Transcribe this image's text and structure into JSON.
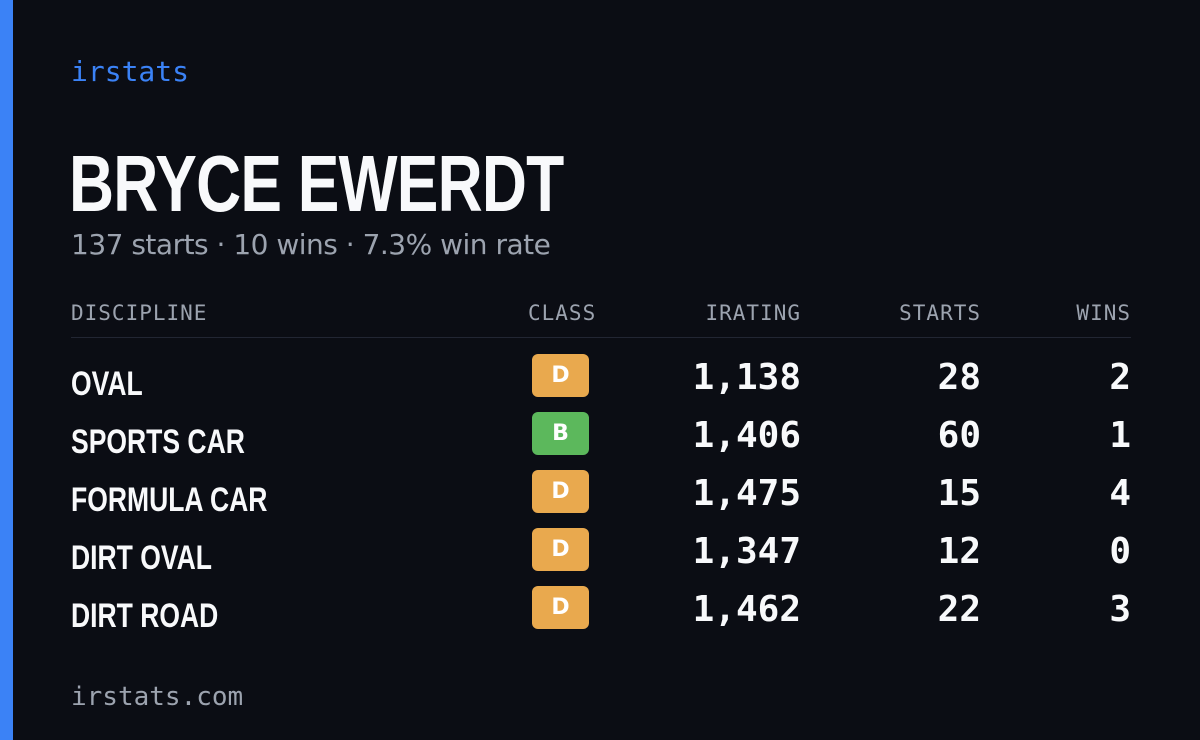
{
  "brand": "irstats",
  "driver": {
    "name": "BRYCE EWERDT",
    "summary": "137 starts · 10 wins · 7.3% win rate"
  },
  "colors": {
    "accent": "#3b82f6",
    "class_D": "#e9a94e",
    "class_B": "#5cb85c",
    "background": "#0b0d14"
  },
  "table": {
    "headers": {
      "discipline": "DISCIPLINE",
      "class": "CLASS",
      "irating": "IRATING",
      "starts": "STARTS",
      "wins": "WINS"
    },
    "rows": [
      {
        "discipline": "OVAL",
        "class": "D",
        "irating": "1,138",
        "starts": "28",
        "wins": "2"
      },
      {
        "discipline": "SPORTS CAR",
        "class": "B",
        "irating": "1,406",
        "starts": "60",
        "wins": "1"
      },
      {
        "discipline": "FORMULA CAR",
        "class": "D",
        "irating": "1,475",
        "starts": "15",
        "wins": "4"
      },
      {
        "discipline": "DIRT OVAL",
        "class": "D",
        "irating": "1,347",
        "starts": "12",
        "wins": "0"
      },
      {
        "discipline": "DIRT ROAD",
        "class": "D",
        "irating": "1,462",
        "starts": "22",
        "wins": "3"
      }
    ]
  },
  "footer": "irstats.com"
}
